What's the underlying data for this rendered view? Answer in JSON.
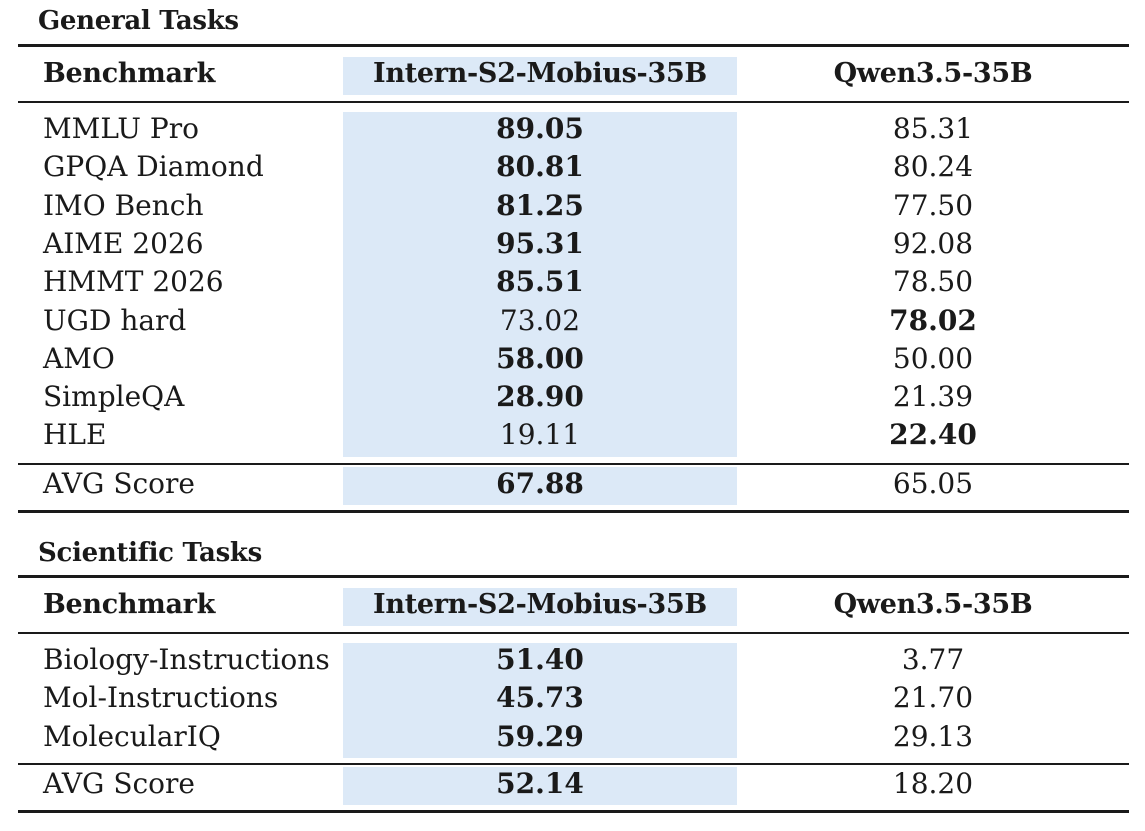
{
  "general": {
    "title": "General Tasks",
    "headers": [
      "Benchmark",
      "Intern-S2-Mobius-35B",
      "Qwen3.5-35B"
    ],
    "rows": [
      {
        "name": "MMLU Pro",
        "intern": "89.05",
        "qwen": "85.31",
        "best": "intern"
      },
      {
        "name": "GPQA Diamond",
        "intern": "80.81",
        "qwen": "80.24",
        "best": "intern"
      },
      {
        "name": "IMO Bench",
        "intern": "81.25",
        "qwen": "77.50",
        "best": "intern"
      },
      {
        "name": "AIME 2026",
        "intern": "95.31",
        "qwen": "92.08",
        "best": "intern"
      },
      {
        "name": "HMMT 2026",
        "intern": "85.51",
        "qwen": "78.50",
        "best": "intern"
      },
      {
        "name": "UGD hard",
        "intern": "73.02",
        "qwen": "78.02",
        "best": "qwen"
      },
      {
        "name": "AMO",
        "intern": "58.00",
        "qwen": "50.00",
        "best": "intern"
      },
      {
        "name": "SimpleQA",
        "intern": "28.90",
        "qwen": "21.39",
        "best": "intern"
      },
      {
        "name": "HLE",
        "intern": "19.11",
        "qwen": "22.40",
        "best": "qwen"
      }
    ],
    "avg": {
      "name": "AVG Score",
      "intern": "67.88",
      "qwen": "65.05",
      "best": "intern"
    }
  },
  "scientific": {
    "title": "Scientific Tasks",
    "headers": [
      "Benchmark",
      "Intern-S2-Mobius-35B",
      "Qwen3.5-35B"
    ],
    "rows": [
      {
        "name": "Biology-Instructions",
        "intern": "51.40",
        "qwen": "3.77",
        "best": "intern"
      },
      {
        "name": "Mol-Instructions",
        "intern": "45.73",
        "qwen": "21.70",
        "best": "intern"
      },
      {
        "name": "MolecularIQ",
        "intern": "59.29",
        "qwen": "29.13",
        "best": "intern"
      }
    ],
    "avg": {
      "name": "AVG Score",
      "intern": "52.14",
      "qwen": "18.20",
      "best": "intern"
    }
  }
}
